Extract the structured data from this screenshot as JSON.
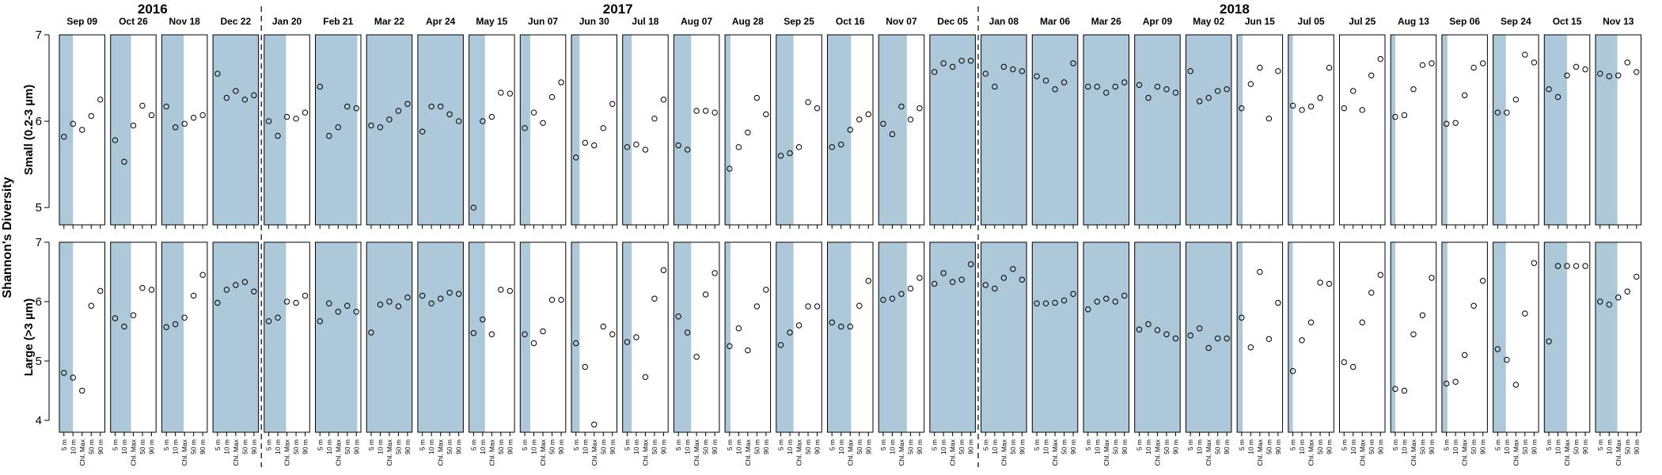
{
  "chart_data": {
    "type": "scatter",
    "ylabel": "Shannon's Diversity",
    "depth_labels": [
      "5 m",
      "10 m",
      "Chl. Max",
      "50 m",
      "90 m"
    ],
    "years": [
      {
        "label": "2016",
        "start": 0
      },
      {
        "label": "2017",
        "start": 4
      },
      {
        "label": "2018",
        "start": 18
      }
    ],
    "rows": [
      {
        "label": "Small (0.2-3 µm)",
        "ylim": [
          4.8,
          7.0
        ],
        "yticks": [
          5,
          6,
          7
        ]
      },
      {
        "label": "Large (>3 µm)",
        "ylim": [
          3.8,
          7.0
        ],
        "yticks": [
          4,
          5,
          6,
          7
        ]
      }
    ],
    "colors": {
      "mixed_layer": "#adc8d9",
      "background": "#ffffff",
      "axis": "#000000"
    },
    "panels": [
      {
        "date": "Sep 09",
        "mixed": 0.3,
        "small": [
          5.82,
          5.97,
          5.9,
          6.06,
          6.25
        ],
        "large": [
          4.8,
          4.72,
          4.5,
          5.93,
          6.18
        ]
      },
      {
        "date": "Oct 26",
        "mixed": 0.45,
        "small": [
          5.78,
          5.53,
          5.95,
          6.18,
          6.07
        ],
        "large": [
          5.72,
          5.58,
          5.77,
          6.23,
          6.2
        ]
      },
      {
        "date": "Nov 18",
        "mixed": 0.48,
        "small": [
          6.17,
          5.93,
          5.97,
          6.04,
          6.07
        ],
        "large": [
          5.57,
          5.62,
          5.73,
          6.1,
          6.45
        ]
      },
      {
        "date": "Dec 22",
        "mixed": 1.0,
        "small": [
          6.55,
          6.27,
          6.35,
          6.25,
          6.3
        ],
        "large": [
          5.98,
          6.2,
          6.28,
          6.33,
          6.17
        ]
      },
      {
        "date": "Jan 20",
        "mixed": 0.48,
        "small": [
          6.0,
          5.83,
          6.05,
          6.03,
          6.1
        ],
        "large": [
          5.67,
          5.73,
          6.0,
          5.98,
          6.1
        ]
      },
      {
        "date": "Feb 21",
        "mixed": 0.92,
        "small": [
          6.4,
          5.83,
          5.93,
          6.17,
          6.15
        ],
        "large": [
          5.67,
          5.97,
          5.83,
          5.93,
          5.83
        ]
      },
      {
        "date": "Mar 22",
        "mixed": 1.0,
        "small": [
          5.95,
          5.93,
          6.02,
          6.12,
          6.2
        ],
        "large": [
          5.48,
          5.95,
          6.0,
          5.92,
          6.07
        ]
      },
      {
        "date": "Apr 24",
        "mixed": 1.0,
        "small": [
          5.88,
          6.17,
          6.17,
          6.08,
          6.0
        ],
        "large": [
          6.1,
          5.97,
          6.05,
          6.15,
          6.13
        ]
      },
      {
        "date": "May 15",
        "mixed": 0.35,
        "small": [
          5.0,
          6.0,
          6.05,
          6.33,
          6.32
        ],
        "large": [
          5.47,
          5.7,
          5.45,
          6.2,
          6.18
        ]
      },
      {
        "date": "Jun 07",
        "mixed": 0.22,
        "small": [
          5.92,
          6.1,
          5.98,
          6.28,
          6.45
        ],
        "large": [
          5.45,
          5.3,
          5.5,
          6.03,
          6.03
        ]
      },
      {
        "date": "Jun 30",
        "mixed": 0.18,
        "small": [
          5.58,
          5.75,
          5.72,
          5.92,
          6.2
        ],
        "large": [
          5.3,
          4.9,
          3.93,
          5.58,
          5.45
        ]
      },
      {
        "date": "Jul 18",
        "mixed": 0.2,
        "small": [
          5.7,
          5.73,
          5.67,
          6.03,
          6.25
        ],
        "large": [
          5.32,
          5.4,
          4.73,
          6.05,
          6.53
        ]
      },
      {
        "date": "Aug 07",
        "mixed": 0.38,
        "small": [
          5.72,
          5.67,
          6.12,
          6.12,
          6.1
        ],
        "large": [
          5.75,
          5.48,
          5.07,
          6.12,
          6.48
        ]
      },
      {
        "date": "Aug 28",
        "mixed": 0.12,
        "small": [
          5.45,
          5.7,
          5.87,
          6.27,
          6.08
        ],
        "large": [
          5.25,
          5.55,
          5.18,
          5.92,
          6.2
        ]
      },
      {
        "date": "Sep 25",
        "mixed": 0.38,
        "small": [
          5.6,
          5.63,
          5.7,
          6.22,
          6.15
        ],
        "large": [
          5.27,
          5.48,
          5.6,
          5.92,
          5.92
        ]
      },
      {
        "date": "Oct 16",
        "mixed": 0.52,
        "small": [
          5.7,
          5.73,
          5.9,
          6.02,
          6.08
        ],
        "large": [
          5.65,
          5.58,
          5.58,
          5.93,
          6.35
        ]
      },
      {
        "date": "Nov 07",
        "mixed": 0.62,
        "small": [
          5.97,
          5.85,
          6.17,
          6.02,
          6.15
        ],
        "large": [
          6.03,
          6.05,
          6.13,
          6.22,
          6.4
        ]
      },
      {
        "date": "Dec 05",
        "mixed": 1.0,
        "small": [
          6.57,
          6.67,
          6.63,
          6.7,
          6.7
        ],
        "large": [
          6.3,
          6.48,
          6.33,
          6.37,
          6.63
        ]
      },
      {
        "date": "Jan 08",
        "mixed": 1.0,
        "small": [
          6.55,
          6.4,
          6.63,
          6.6,
          6.58
        ],
        "large": [
          6.28,
          6.22,
          6.4,
          6.55,
          6.37
        ]
      },
      {
        "date": "Mar 06",
        "mixed": 1.0,
        "small": [
          6.52,
          6.47,
          6.37,
          6.45,
          6.67
        ],
        "large": [
          5.97,
          5.97,
          5.98,
          6.02,
          6.13
        ]
      },
      {
        "date": "Mar 26",
        "mixed": 1.0,
        "small": [
          6.4,
          6.4,
          6.33,
          6.4,
          6.45
        ],
        "large": [
          5.87,
          6.0,
          6.05,
          6.0,
          6.1
        ]
      },
      {
        "date": "Apr 09",
        "mixed": 1.0,
        "small": [
          6.42,
          6.27,
          6.4,
          6.37,
          6.33
        ],
        "large": [
          5.53,
          5.62,
          5.52,
          5.45,
          5.38
        ]
      },
      {
        "date": "May 02",
        "mixed": 1.0,
        "small": [
          6.58,
          6.23,
          6.27,
          6.35,
          6.37
        ],
        "large": [
          5.43,
          5.55,
          5.22,
          5.38,
          5.38
        ]
      },
      {
        "date": "Jun 15",
        "mixed": 0.12,
        "small": [
          6.15,
          6.43,
          6.62,
          6.03,
          6.58
        ],
        "large": [
          5.73,
          5.23,
          6.5,
          5.37,
          5.98
        ]
      },
      {
        "date": "Jul 05",
        "mixed": 0.1,
        "small": [
          6.18,
          6.13,
          6.17,
          6.27,
          6.62
        ],
        "large": [
          4.83,
          5.35,
          5.65,
          6.32,
          6.3
        ]
      },
      {
        "date": "Jul 25",
        "mixed": 0.0,
        "small": [
          6.15,
          6.35,
          6.13,
          6.53,
          6.72
        ],
        "large": [
          4.98,
          4.9,
          5.65,
          6.15,
          6.45
        ]
      },
      {
        "date": "Aug 13",
        "mixed": 0.1,
        "small": [
          6.05,
          6.07,
          6.37,
          6.65,
          6.67
        ],
        "large": [
          4.53,
          4.5,
          5.45,
          5.77,
          6.4
        ]
      },
      {
        "date": "Sep 06",
        "mixed": 0.12,
        "small": [
          5.97,
          5.98,
          6.3,
          6.62,
          6.67
        ],
        "large": [
          4.62,
          4.65,
          5.1,
          5.93,
          6.35
        ]
      },
      {
        "date": "Sep 24",
        "mixed": 0.28,
        "small": [
          6.1,
          6.1,
          6.25,
          6.77,
          6.68
        ],
        "large": [
          5.2,
          5.02,
          4.6,
          5.8,
          6.65
        ]
      },
      {
        "date": "Oct 15",
        "mixed": 0.5,
        "small": [
          6.37,
          6.28,
          6.53,
          6.63,
          6.6
        ],
        "large": [
          5.33,
          6.6,
          6.6,
          6.6,
          6.6
        ]
      },
      {
        "date": "Nov 13",
        "mixed": 0.48,
        "small": [
          6.55,
          6.52,
          6.53,
          6.68,
          6.57
        ],
        "large": [
          6.0,
          5.95,
          6.07,
          6.17,
          6.42
        ]
      }
    ]
  }
}
